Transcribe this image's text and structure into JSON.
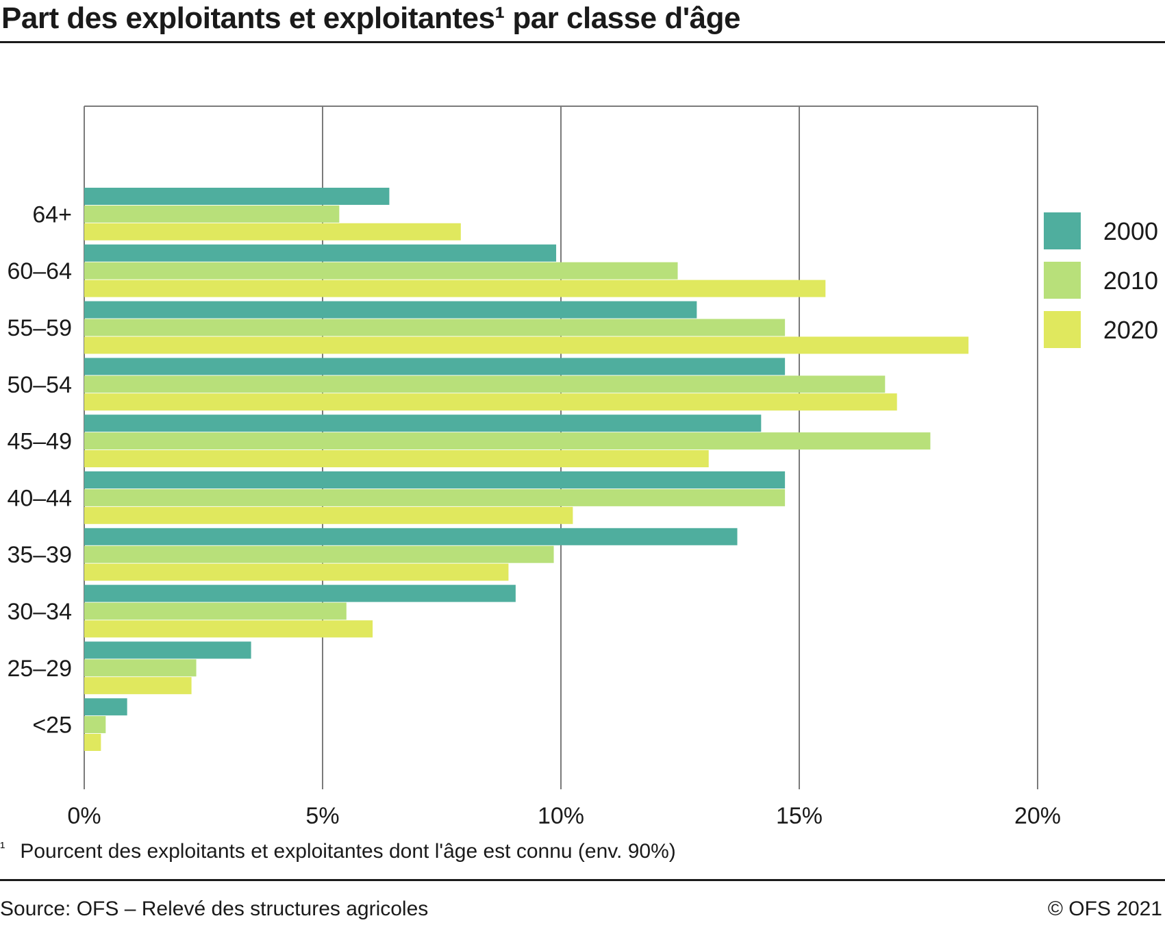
{
  "title": "Part des exploitants et exploitantes¹ par classe d'âge",
  "footnote": {
    "marker": "¹",
    "text": "Pourcent des exploitants et exploitantes dont l'âge est connu (env. 90%)"
  },
  "source": "Source: OFS – Relevé des structures agricoles",
  "copyright": "© OFS 2021",
  "colors": {
    "2000": "#4fae9e",
    "2010": "#b8e07a",
    "2020": "#e0e85e"
  },
  "chart_data": {
    "type": "bar",
    "orientation": "horizontal",
    "categories": [
      "64+",
      "60–64",
      "55–59",
      "50–54",
      "45–49",
      "40–44",
      "35–39",
      "30–34",
      "25–29",
      "<25"
    ],
    "series": [
      {
        "name": "2000",
        "color": "#4fae9e",
        "values": [
          6.4,
          9.9,
          12.85,
          14.7,
          14.2,
          14.7,
          13.7,
          9.05,
          3.5,
          0.9
        ]
      },
      {
        "name": "2010",
        "color": "#b8e07a",
        "values": [
          5.35,
          12.45,
          14.7,
          16.8,
          17.75,
          14.7,
          9.85,
          5.5,
          2.35,
          0.45
        ]
      },
      {
        "name": "2020",
        "color": "#e0e85e",
        "values": [
          7.9,
          15.55,
          18.55,
          17.05,
          13.1,
          10.25,
          8.9,
          6.05,
          2.25,
          0.35
        ]
      }
    ],
    "xlim": [
      0,
      20
    ],
    "xticks": [
      "0%",
      "5%",
      "10%",
      "15%",
      "20%"
    ],
    "grid": true,
    "legend_position": "right"
  }
}
